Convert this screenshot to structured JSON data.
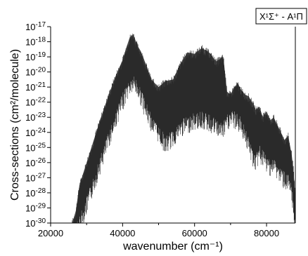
{
  "chart_data": {
    "type": "line",
    "legend": "X¹Σ⁺ - A¹Π",
    "legend_position": "top-right",
    "xlabel": "wavenumber (cm⁻¹)",
    "ylabel": "Cross-sections (cm²/molecule)",
    "xlim": [
      20000,
      88000
    ],
    "ylim": [
      1e-30,
      1e-17
    ],
    "yscale": "log",
    "grid": false,
    "series_color": "#2a2a2a",
    "x_ticks": [
      20000,
      40000,
      60000,
      80000
    ],
    "x_tick_labels": [
      "20000",
      "40000",
      "60000",
      "80000"
    ],
    "y_ticks": [
      -30,
      -29,
      -28,
      -27,
      -26,
      -25,
      -24,
      -23,
      -22,
      -21,
      -20,
      -19,
      -18,
      -17
    ],
    "y_tick_labels": [
      "10-30",
      "10-29",
      "10-28",
      "10-27",
      "10-26",
      "10-25",
      "10-24",
      "10-23",
      "10-22",
      "10-21",
      "10-20",
      "10-19",
      "10-18",
      "10-17"
    ],
    "series": [
      {
        "envelope_upper": {
          "x": [
            25000,
            26000,
            27000,
            28000,
            30000,
            32000,
            34000,
            36000,
            38000,
            40000,
            41000,
            42000,
            43000,
            44000,
            45000,
            46000,
            48000,
            50000,
            52000,
            54000,
            56000,
            58000,
            60000,
            62000,
            64000,
            66000,
            68000,
            69000,
            70000,
            71000,
            72000,
            73000,
            74000,
            75000,
            76000,
            77000,
            78000,
            79000,
            80000,
            81000,
            82000,
            83000,
            84000,
            85000,
            86000,
            87000,
            87500,
            88000
          ],
          "log_y": [
            -30,
            -30,
            -29.2,
            -27.5,
            -26.0,
            -24.5,
            -23.0,
            -21.6,
            -20.3,
            -19.2,
            -18.4,
            -17.7,
            -17.5,
            -18.2,
            -18.6,
            -19.2,
            -20.5,
            -21.0,
            -20.6,
            -20.5,
            -19.5,
            -18.7,
            -18.8,
            -18.4,
            -18.7,
            -19.3,
            -19.0,
            -21.3,
            -21.5,
            -21.0,
            -20.8,
            -21.2,
            -21.5,
            -21.6,
            -22.0,
            -22.5,
            -22.3,
            -23.0,
            -22.6,
            -23.2,
            -23.0,
            -23.5,
            -24.0,
            -24.5,
            -24.2,
            -25.5,
            -26.5,
            -28.5
          ]
        },
        "envelope_lower": {
          "x": [
            25000,
            26000,
            27000,
            28000,
            30000,
            32000,
            34000,
            36000,
            38000,
            40000,
            41000,
            42000,
            43000,
            44000,
            45000,
            46000,
            48000,
            50000,
            52000,
            54000,
            56000,
            58000,
            60000,
            62000,
            64000,
            66000,
            68000,
            69000,
            70000,
            71000,
            72000,
            73000,
            74000,
            75000,
            76000,
            77000,
            78000,
            79000,
            80000,
            81000,
            82000,
            83000,
            84000,
            85000,
            86000,
            87000,
            87500,
            88000
          ],
          "log_y": [
            -30,
            -30,
            -30,
            -29.5,
            -28.3,
            -26.8,
            -25.4,
            -24.0,
            -22.6,
            -21.4,
            -20.8,
            -20.4,
            -20.2,
            -20.5,
            -21.0,
            -21.7,
            -22.8,
            -23.5,
            -24.3,
            -23.8,
            -23.2,
            -22.9,
            -22.7,
            -22.6,
            -22.8,
            -23.1,
            -23.3,
            -22.8,
            -22.5,
            -22.6,
            -22.8,
            -23.0,
            -23.5,
            -24.3,
            -25.0,
            -25.5,
            -24.8,
            -25.2,
            -25.5,
            -25.7,
            -25.6,
            -26.0,
            -26.3,
            -26.6,
            -26.8,
            -27.6,
            -28.8,
            -30
          ]
        }
      }
    ]
  }
}
